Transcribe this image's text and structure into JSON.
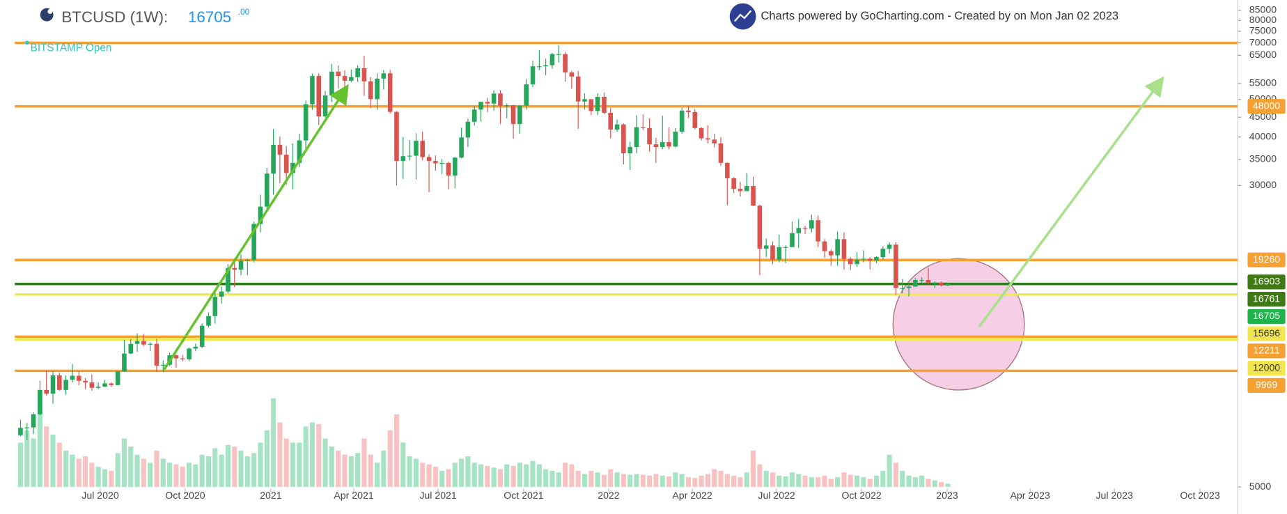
{
  "header": {
    "symbol": "BTCUSD (1W):",
    "price": "16705",
    "price_decimals": ".00",
    "exchange": "BITSTAMP Open",
    "credit": "Charts powered by GoCharting.com - Created by  on Mon Jan 02 2023"
  },
  "chart_data": {
    "type": "candlestick",
    "yscale": "log",
    "ylim": [
      5000,
      89000
    ],
    "yticks": [
      5000,
      30000,
      35000,
      40000,
      45000,
      50000,
      55000,
      65000,
      70000,
      75000,
      80000,
      85000
    ],
    "xticks": [
      {
        "value": 12.3,
        "label": "Jul 2020"
      },
      {
        "value": 25.4,
        "label": "Oct 2020"
      },
      {
        "value": 38.6,
        "label": "2021"
      },
      {
        "value": 51.4,
        "label": "Apr 2021"
      },
      {
        "value": 64.4,
        "label": "Jul 2021"
      },
      {
        "value": 77.6,
        "label": "Oct 2021"
      },
      {
        "value": 90.7,
        "label": "2022"
      },
      {
        "value": 103.6,
        "label": "Apr 2022"
      },
      {
        "value": 116.6,
        "label": "Jul 2022"
      },
      {
        "value": 129.7,
        "label": "Oct 2022"
      },
      {
        "value": 142.9,
        "label": "2023"
      },
      {
        "value": 155.7,
        "label": "Apr 2023"
      },
      {
        "value": 168.7,
        "label": "Jul 2023"
      },
      {
        "value": 181.9,
        "label": "Oct 2023"
      }
    ],
    "up_color": "#26a65b",
    "down_color": "#d9534f",
    "up_volume_color": "#a6e3c4",
    "down_volume_color": "#f8c2c2",
    "candles": [
      [
        6800,
        7450,
        6750,
        7100
      ],
      [
        7100,
        7300,
        6600,
        7120
      ],
      [
        7120,
        7780,
        6850,
        7700
      ],
      [
        7700,
        9400,
        7650,
        8900
      ],
      [
        8900,
        10000,
        8600,
        8700
      ],
      [
        8700,
        9950,
        8200,
        9700
      ],
      [
        9700,
        9850,
        8850,
        8900
      ],
      [
        8900,
        9700,
        8650,
        9450
      ],
      [
        9450,
        10380,
        9300,
        9680
      ],
      [
        9680,
        9950,
        9150,
        9390
      ],
      [
        9390,
        9550,
        8950,
        9300
      ],
      [
        9300,
        9750,
        8850,
        9010
      ],
      [
        9010,
        9300,
        8950,
        9070
      ],
      [
        9070,
        9450,
        9050,
        9250
      ],
      [
        9250,
        9300,
        9050,
        9160
      ],
      [
        9160,
        9950,
        9150,
        9930
      ],
      [
        9930,
        12000,
        9900,
        11050
      ],
      [
        11050,
        12050,
        11000,
        11700
      ],
      [
        11700,
        12450,
        11150,
        11900
      ],
      [
        11900,
        12400,
        11550,
        11650
      ],
      [
        11650,
        11800,
        11200,
        11700
      ],
      [
        11700,
        12050,
        9900,
        10280
      ],
      [
        10280,
        10600,
        9900,
        10330
      ],
      [
        10330,
        11100,
        10250,
        10930
      ],
      [
        10930,
        10990,
        10150,
        10730
      ],
      [
        10730,
        10950,
        10550,
        10670
      ],
      [
        10670,
        11450,
        10550,
        11380
      ],
      [
        11380,
        11720,
        11200,
        11500
      ],
      [
        11500,
        13200,
        11400,
        13030
      ],
      [
        13030,
        14100,
        12900,
        13800
      ],
      [
        13800,
        15900,
        13200,
        15480
      ],
      [
        15480,
        16450,
        14850,
        15970
      ],
      [
        15970,
        18800,
        15800,
        18370
      ],
      [
        18370,
        19450,
        16400,
        18180
      ],
      [
        18180,
        19900,
        17600,
        19160
      ],
      [
        19160,
        19400,
        17600,
        19270
      ],
      [
        19270,
        24200,
        19000,
        23860
      ],
      [
        23860,
        28400,
        22700,
        26450
      ],
      [
        26450,
        33300,
        26000,
        32190
      ],
      [
        32190,
        41950,
        28400,
        38200
      ],
      [
        38200,
        40100,
        30400,
        36000
      ],
      [
        36000,
        37900,
        30100,
        32290
      ],
      [
        32290,
        38500,
        29300,
        34300
      ],
      [
        34300,
        40800,
        33400,
        39190
      ],
      [
        39190,
        49700,
        37400,
        48600
      ],
      [
        48600,
        58300,
        47000,
        57500
      ],
      [
        57500,
        58400,
        43000,
        45240
      ],
      [
        45240,
        52600,
        44900,
        51200
      ],
      [
        51200,
        61800,
        49200,
        59000
      ],
      [
        59000,
        61200,
        53300,
        57500
      ],
      [
        57500,
        59500,
        50400,
        55900
      ],
      [
        55900,
        59800,
        55400,
        57100
      ],
      [
        57100,
        61200,
        55500,
        60200
      ],
      [
        60200,
        64800,
        51100,
        55700
      ],
      [
        55700,
        57100,
        47500,
        50100
      ],
      [
        50100,
        58400,
        47000,
        56600
      ],
      [
        56600,
        59500,
        53000,
        58400
      ],
      [
        58400,
        59600,
        46000,
        46450
      ],
      [
        46450,
        46700,
        30000,
        34700
      ],
      [
        34700,
        40000,
        31200,
        35700
      ],
      [
        35700,
        39300,
        34800,
        35800
      ],
      [
        35800,
        40900,
        31100,
        39100
      ],
      [
        39100,
        41300,
        34800,
        35500
      ],
      [
        35500,
        36100,
        28800,
        34700
      ],
      [
        34700,
        35900,
        32700,
        34200
      ],
      [
        34200,
        35100,
        32100,
        34300
      ],
      [
        34300,
        34600,
        29300,
        31800
      ],
      [
        31800,
        35400,
        29500,
        35400
      ],
      [
        35400,
        42300,
        35200,
        39900
      ],
      [
        39900,
        44600,
        37700,
        43800
      ],
      [
        43800,
        48100,
        42800,
        47100
      ],
      [
        47100,
        49300,
        43900,
        49300
      ],
      [
        49300,
        50500,
        46400,
        48800
      ],
      [
        48800,
        52800,
        46800,
        51800
      ],
      [
        51800,
        52900,
        43300,
        48200
      ],
      [
        48200,
        48800,
        44700,
        48300
      ],
      [
        48300,
        48400,
        39600,
        43200
      ],
      [
        43200,
        48400,
        40800,
        48200
      ],
      [
        48200,
        56500,
        47100,
        54700
      ],
      [
        54700,
        62900,
        53800,
        60900
      ],
      [
        60900,
        67000,
        59500,
        60900
      ],
      [
        60900,
        63700,
        57800,
        61300
      ],
      [
        61300,
        66000,
        60000,
        65500
      ],
      [
        65500,
        69000,
        62300,
        65500
      ],
      [
        65500,
        66300,
        55600,
        58700
      ],
      [
        58700,
        59300,
        53300,
        57300
      ],
      [
        57300,
        59200,
        42000,
        49400
      ],
      [
        49400,
        51900,
        47100,
        50100
      ],
      [
        50100,
        50100,
        45600,
        46700
      ],
      [
        46700,
        51900,
        45600,
        50800
      ],
      [
        50800,
        52100,
        45800,
        46200
      ],
      [
        46200,
        47500,
        39700,
        41800
      ],
      [
        41800,
        44400,
        41300,
        43100
      ],
      [
        43100,
        43400,
        34000,
        36300
      ],
      [
        36300,
        38900,
        32900,
        37700
      ],
      [
        37700,
        45500,
        36300,
        42400
      ],
      [
        42400,
        45800,
        41700,
        42200
      ],
      [
        42200,
        44700,
        36700,
        38300
      ],
      [
        38300,
        39800,
        34300,
        37700
      ],
      [
        37700,
        45400,
        37200,
        38800
      ],
      [
        38800,
        42400,
        37200,
        37800
      ],
      [
        37800,
        42200,
        37600,
        41300
      ],
      [
        41300,
        47600,
        40800,
        46800
      ],
      [
        46800,
        48200,
        44800,
        46400
      ],
      [
        46400,
        47200,
        41900,
        42200
      ],
      [
        42200,
        42400,
        39200,
        39700
      ],
      [
        39700,
        42900,
        38500,
        39400
      ],
      [
        39400,
        40800,
        37600,
        38500
      ],
      [
        38500,
        40000,
        33700,
        34300
      ],
      [
        34300,
        34400,
        26700,
        31300
      ],
      [
        31300,
        31500,
        28700,
        29400
      ],
      [
        29400,
        30600,
        28100,
        29000
      ],
      [
        29000,
        32300,
        29000,
        29900
      ],
      [
        29900,
        31600,
        26500,
        26600
      ],
      [
        26600,
        26800,
        17600,
        20600
      ],
      [
        20600,
        21900,
        19600,
        21000
      ],
      [
        21000,
        21500,
        18800,
        19300
      ],
      [
        19300,
        22400,
        19000,
        20800
      ],
      [
        20800,
        21000,
        18900,
        20800
      ],
      [
        20800,
        24200,
        20800,
        22600
      ],
      [
        22600,
        24600,
        20700,
        23300
      ],
      [
        23300,
        23600,
        22500,
        23200
      ],
      [
        23200,
        25200,
        22700,
        24400
      ],
      [
        24400,
        25100,
        20800,
        21500
      ],
      [
        21500,
        21800,
        19500,
        20300
      ],
      [
        20300,
        20500,
        18600,
        19800
      ],
      [
        19800,
        22800,
        18600,
        21800
      ],
      [
        21800,
        22700,
        18200,
        19400
      ],
      [
        19400,
        19600,
        18150,
        18800
      ],
      [
        18800,
        20200,
        18500,
        19300
      ],
      [
        19300,
        20400,
        19000,
        19400
      ],
      [
        19400,
        19600,
        18200,
        19200
      ],
      [
        19200,
        19700,
        18900,
        19600
      ],
      [
        19600,
        20900,
        19300,
        20600
      ],
      [
        20600,
        21400,
        20000,
        21100
      ],
      [
        21100,
        21400,
        15600,
        16300
      ],
      [
        16300,
        17200,
        15800,
        16300
      ],
      [
        16300,
        16800,
        15500,
        16450
      ],
      [
        16450,
        17300,
        16400,
        17100
      ],
      [
        17100,
        17400,
        16700,
        17100
      ],
      [
        17100,
        18400,
        16600,
        16800
      ],
      [
        16800,
        16950,
        16300,
        16850
      ],
      [
        16850,
        16950,
        16450,
        16550
      ],
      [
        16550,
        16780,
        16500,
        16705
      ]
    ],
    "volume": [
      55,
      70,
      60,
      95,
      75,
      65,
      55,
      45,
      40,
      35,
      38,
      30,
      25,
      22,
      20,
      42,
      60,
      50,
      40,
      35,
      30,
      45,
      35,
      30,
      28,
      25,
      30,
      28,
      40,
      38,
      48,
      40,
      52,
      50,
      45,
      38,
      42,
      55,
      70,
      110,
      80,
      60,
      55,
      55,
      75,
      80,
      78,
      60,
      50,
      45,
      40,
      38,
      42,
      60,
      40,
      30,
      45,
      70,
      90,
      55,
      38,
      35,
      30,
      28,
      25,
      20,
      22,
      30,
      35,
      38,
      30,
      28,
      26,
      24,
      22,
      28,
      26,
      30,
      28,
      32,
      28,
      22,
      20,
      18,
      30,
      28,
      20,
      16,
      20,
      18,
      15,
      22,
      18,
      16,
      15,
      16,
      15,
      14,
      16,
      14,
      13,
      18,
      16,
      12,
      11,
      14,
      16,
      22,
      20,
      16,
      14,
      12,
      18,
      45,
      28,
      20,
      18,
      14,
      13,
      18,
      16,
      14,
      12,
      12,
      14,
      10,
      12,
      18,
      15,
      14,
      12,
      10,
      14,
      20,
      40,
      30,
      20,
      14,
      12,
      14,
      10,
      8,
      6,
      4
    ],
    "levels": [
      {
        "value": 70000,
        "color": "#f5a030"
      },
      {
        "value": 48000,
        "color": "#f5a030"
      },
      {
        "value": 19260,
        "color": "#f5a030"
      },
      {
        "value": 16705,
        "color": "#2f7d1f"
      },
      {
        "value": 15696,
        "color": "#ecec50"
      },
      {
        "value": 12211,
        "color": "#f5a030"
      },
      {
        "value": 12000,
        "color": "#ecec50"
      },
      {
        "value": 9969,
        "color": "#f5a030"
      }
    ],
    "price_labels": [
      {
        "value": 48000,
        "color": "#f5a030"
      },
      {
        "value": 19260,
        "color": "#f5a030"
      },
      {
        "value": 16903,
        "color": "#3f7a14"
      },
      {
        "value": 16761,
        "color": "#3f7a14"
      },
      {
        "value": 16705,
        "color": "#1fb34c"
      },
      {
        "value": 15696,
        "color": "#f2e650"
      },
      {
        "value": 12211,
        "color": "#f5a030"
      },
      {
        "value": 12000,
        "color": "#f2e650"
      },
      {
        "value": 9969,
        "color": "#f5a030"
      }
    ]
  }
}
